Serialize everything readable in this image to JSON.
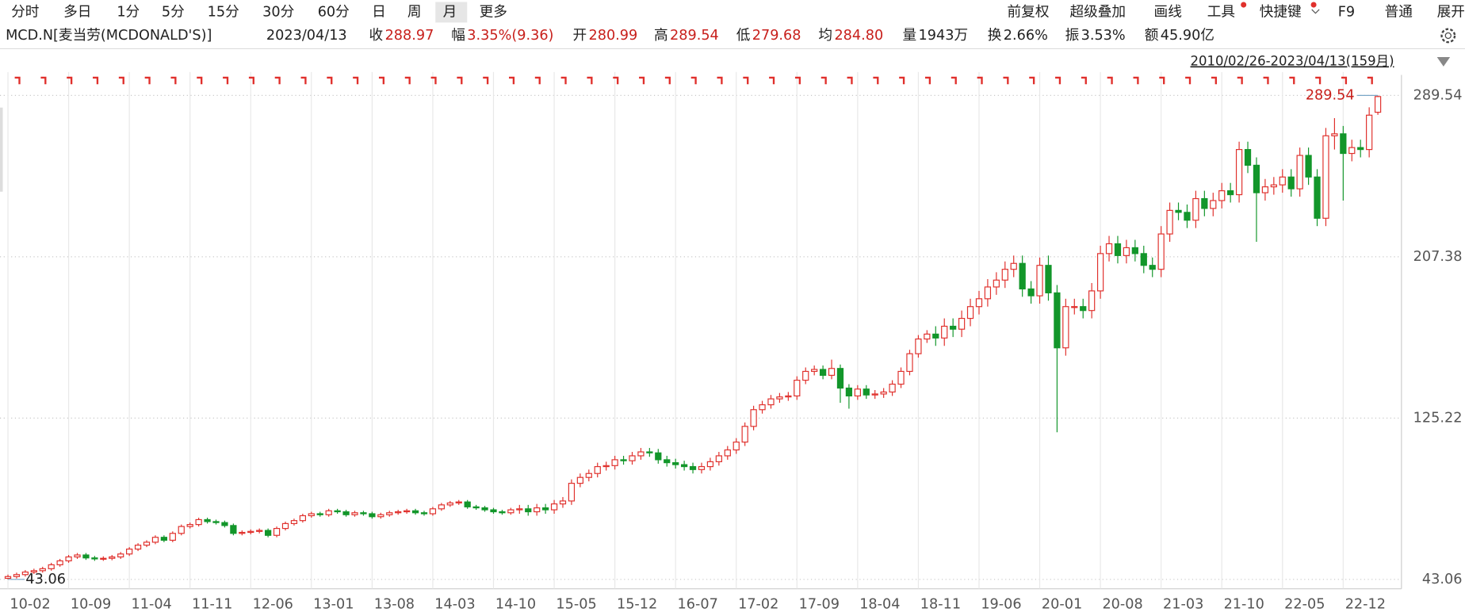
{
  "toolbar": {
    "left": [
      "分时",
      "多日",
      "1分",
      "5分",
      "15分",
      "30分",
      "60分",
      "日",
      "周",
      "月",
      "更多"
    ],
    "right": [
      "前复权",
      "超级叠加",
      "画线",
      "工具",
      "快捷键",
      "F9",
      "普通",
      "展开"
    ]
  },
  "header": {
    "symbol": "MCD.N[麦当劳(MCDONALD'S)]",
    "date": "2023/04/13",
    "stats": [
      {
        "label": "收",
        "value": "288.97"
      },
      {
        "label": "幅",
        "value": "3.35%(9.36)"
      },
      {
        "label": "开",
        "value": "280.99"
      },
      {
        "label": "高",
        "value": "289.54"
      },
      {
        "label": "低",
        "value": "279.68"
      },
      {
        "label": "均",
        "value": "284.80"
      },
      {
        "label": "量",
        "value": "1943万"
      },
      {
        "label": "换",
        "value": "2.66%"
      },
      {
        "label": "振",
        "value": "3.53%"
      },
      {
        "label": "额",
        "value": "45.90亿"
      }
    ],
    "range": "2010/02/26-2023/04/13(159月)"
  },
  "chart_data": {
    "type": "candlestick",
    "up_color": "#e0302c",
    "down_color": "#12962a",
    "grid": true,
    "ylim": [
      38.28,
      291.93
    ],
    "yticks": [
      43.06,
      125.22,
      207.38,
      289.54
    ],
    "categories": [
      "10-02",
      null,
      null,
      null,
      null,
      null,
      null,
      "10-09",
      null,
      null,
      null,
      null,
      null,
      null,
      "11-04",
      null,
      null,
      null,
      null,
      null,
      null,
      "11-11",
      null,
      null,
      null,
      null,
      null,
      null,
      "12-06",
      null,
      null,
      null,
      null,
      null,
      null,
      "13-01",
      null,
      null,
      null,
      null,
      null,
      null,
      "13-08",
      null,
      null,
      null,
      null,
      null,
      null,
      "14-03",
      null,
      null,
      null,
      null,
      null,
      null,
      "14-10",
      null,
      null,
      null,
      null,
      null,
      null,
      "15-05",
      null,
      null,
      null,
      null,
      null,
      null,
      "15-12",
      null,
      null,
      null,
      null,
      null,
      null,
      "16-07",
      null,
      null,
      null,
      null,
      null,
      null,
      "17-02",
      null,
      null,
      null,
      null,
      null,
      null,
      "17-09",
      null,
      null,
      null,
      null,
      null,
      null,
      "18-04",
      null,
      null,
      null,
      null,
      null,
      null,
      "18-11",
      null,
      null,
      null,
      null,
      null,
      null,
      "19-06",
      null,
      null,
      null,
      null,
      null,
      null,
      "20-01",
      null,
      null,
      null,
      null,
      null,
      null,
      "20-08",
      null,
      null,
      null,
      null,
      null,
      null,
      "21-03",
      null,
      null,
      null,
      null,
      null,
      null,
      "21-10",
      null,
      null,
      null,
      null,
      null,
      null,
      "22-05",
      null,
      null,
      null,
      null,
      null,
      null,
      "22-12",
      null,
      null,
      null,
      null
    ],
    "candles": [
      [
        43.6,
        45.5,
        43.06,
        44.5
      ],
      [
        44.5,
        46.5,
        43.5,
        45.5
      ],
      [
        45.5,
        47.8,
        44.5,
        46.8
      ],
      [
        46.8,
        48.5,
        45.8,
        47.5
      ],
      [
        47.5,
        49.5,
        46.5,
        48.5
      ],
      [
        48.5,
        51.5,
        47.5,
        50.5
      ],
      [
        50.5,
        53.5,
        49.5,
        52.5
      ],
      [
        52.5,
        55.5,
        51.5,
        54.5
      ],
      [
        54.5,
        56.5,
        53.5,
        55.5
      ],
      [
        55.5,
        56.5,
        53.0,
        54.0
      ],
      [
        54.0,
        55.0,
        52.5,
        53.5
      ],
      [
        53.5,
        54.8,
        52.5,
        53.8
      ],
      [
        53.8,
        55.5,
        52.8,
        54.5
      ],
      [
        54.5,
        57.0,
        53.5,
        56.0
      ],
      [
        56.0,
        59.5,
        55.0,
        58.5
      ],
      [
        58.5,
        61.5,
        57.5,
        60.5
      ],
      [
        60.5,
        63.0,
        59.5,
        62.0
      ],
      [
        62.0,
        65.5,
        61.0,
        64.5
      ],
      [
        64.5,
        65.5,
        62.0,
        63.0
      ],
      [
        63.0,
        67.5,
        62.0,
        66.5
      ],
      [
        66.5,
        71.0,
        65.5,
        70.0
      ],
      [
        70.0,
        72.0,
        69.0,
        71.0
      ],
      [
        71.0,
        74.5,
        70.0,
        73.5
      ],
      [
        73.5,
        74.5,
        71.5,
        72.5
      ],
      [
        72.5,
        73.5,
        71.0,
        72.0
      ],
      [
        72.0,
        73.0,
        69.5,
        70.5
      ],
      [
        70.5,
        71.5,
        65.5,
        66.5
      ],
      [
        66.5,
        68.0,
        65.5,
        67.0
      ],
      [
        67.0,
        68.5,
        66.0,
        67.5
      ],
      [
        67.5,
        69.0,
        66.5,
        68.0
      ],
      [
        68.0,
        69.0,
        64.5,
        65.5
      ],
      [
        65.5,
        70.0,
        64.5,
        69.0
      ],
      [
        69.0,
        72.5,
        68.0,
        71.5
      ],
      [
        71.5,
        74.0,
        70.5,
        73.0
      ],
      [
        73.0,
        76.5,
        72.0,
        75.5
      ],
      [
        75.5,
        77.5,
        74.5,
        76.5
      ],
      [
        76.5,
        77.5,
        75.0,
        76.0
      ],
      [
        76.0,
        79.0,
        75.0,
        78.0
      ],
      [
        78.0,
        79.0,
        76.5,
        77.5
      ],
      [
        77.5,
        78.5,
        75.0,
        76.0
      ],
      [
        76.0,
        78.0,
        75.0,
        77.0
      ],
      [
        77.0,
        78.0,
        75.5,
        76.5
      ],
      [
        76.5,
        77.5,
        74.0,
        75.0
      ],
      [
        75.0,
        77.0,
        74.0,
        76.0
      ],
      [
        76.0,
        78.0,
        75.0,
        77.0
      ],
      [
        77.0,
        78.5,
        76.0,
        77.5
      ],
      [
        77.5,
        79.0,
        76.5,
        78.0
      ],
      [
        78.0,
        79.0,
        76.0,
        77.0
      ],
      [
        77.0,
        78.0,
        75.5,
        76.5
      ],
      [
        76.5,
        80.0,
        75.5,
        79.0
      ],
      [
        79.0,
        82.0,
        78.0,
        81.0
      ],
      [
        81.0,
        83.0,
        80.0,
        82.0
      ],
      [
        82.0,
        83.5,
        81.0,
        82.5
      ],
      [
        82.5,
        83.5,
        79.0,
        80.0
      ],
      [
        80.0,
        81.0,
        78.5,
        79.5
      ],
      [
        79.5,
        80.5,
        77.5,
        78.5
      ],
      [
        78.5,
        79.5,
        76.5,
        77.5
      ],
      [
        77.5,
        78.5,
        76.0,
        77.0
      ],
      [
        77.0,
        79.5,
        76.0,
        78.5
      ],
      [
        78.5,
        81.0,
        76.5,
        79.0
      ],
      [
        79.0,
        81.0,
        75.5,
        77.5
      ],
      [
        77.5,
        81.5,
        75.5,
        79.5
      ],
      [
        79.5,
        81.5,
        76.5,
        78.5
      ],
      [
        78.5,
        83.5,
        76.5,
        81.5
      ],
      [
        81.5,
        85.0,
        79.5,
        83.0
      ],
      [
        83.0,
        94.0,
        81.0,
        92.0
      ],
      [
        92.0,
        97.0,
        90.0,
        95.0
      ],
      [
        95.0,
        99.0,
        93.0,
        97.0
      ],
      [
        97.0,
        102.5,
        95.0,
        100.5
      ],
      [
        100.5,
        103.0,
        98.5,
        101.0
      ],
      [
        101.0,
        106.0,
        99.0,
        104.0
      ],
      [
        104.0,
        106.0,
        101.5,
        103.5
      ],
      [
        103.5,
        108.0,
        101.5,
        106.0
      ],
      [
        106.0,
        110.0,
        104.0,
        108.0
      ],
      [
        108.0,
        110.0,
        105.5,
        107.5
      ],
      [
        107.5,
        109.5,
        102.0,
        104.0
      ],
      [
        104.0,
        106.0,
        100.5,
        102.5
      ],
      [
        102.5,
        104.5,
        99.5,
        101.5
      ],
      [
        101.5,
        103.5,
        98.5,
        100.5
      ],
      [
        100.5,
        102.5,
        97.0,
        99.0
      ],
      [
        99.0,
        102.5,
        97.0,
        100.5
      ],
      [
        100.5,
        105.0,
        98.5,
        103.0
      ],
      [
        103.0,
        108.0,
        101.0,
        106.0
      ],
      [
        106.0,
        111.0,
        104.0,
        109.0
      ],
      [
        109.0,
        115.0,
        107.0,
        113.0
      ],
      [
        113.0,
        123.0,
        111.0,
        121.0
      ],
      [
        121.0,
        131.5,
        119.0,
        129.5
      ],
      [
        129.5,
        134.0,
        127.5,
        132.0
      ],
      [
        132.0,
        137.0,
        130.0,
        135.0
      ],
      [
        135.0,
        138.0,
        133.0,
        136.0
      ],
      [
        136.0,
        138.5,
        134.0,
        136.5
      ],
      [
        136.5,
        146.5,
        134.5,
        144.5
      ],
      [
        144.5,
        151.0,
        142.5,
        149.0
      ],
      [
        149.0,
        152.0,
        147.0,
        150.0
      ],
      [
        150.0,
        152.0,
        145.0,
        147.0
      ],
      [
        147.0,
        155.0,
        145.0,
        150.5
      ],
      [
        150.5,
        152.5,
        133.0,
        140.5
      ],
      [
        140.5,
        142.5,
        130.0,
        136.5
      ],
      [
        136.5,
        142.0,
        134.5,
        140.0
      ],
      [
        140.0,
        142.0,
        135.0,
        137.0
      ],
      [
        137.0,
        139.5,
        135.0,
        137.5
      ],
      [
        137.5,
        140.5,
        135.5,
        138.5
      ],
      [
        138.5,
        144.5,
        136.5,
        142.5
      ],
      [
        142.5,
        151.0,
        140.5,
        149.0
      ],
      [
        149.0,
        160.0,
        147.0,
        158.0
      ],
      [
        158.0,
        167.5,
        156.0,
        165.5
      ],
      [
        165.5,
        170.0,
        163.5,
        168.0
      ],
      [
        168.0,
        172.0,
        162.0,
        166.0
      ],
      [
        166.0,
        176.0,
        162.0,
        172.0
      ],
      [
        172.0,
        176.0,
        166.5,
        170.5
      ],
      [
        170.5,
        180.0,
        166.5,
        176.0
      ],
      [
        176.0,
        186.0,
        172.0,
        182.0
      ],
      [
        182.0,
        190.0,
        178.0,
        186.0
      ],
      [
        186.0,
        196.0,
        182.0,
        192.0
      ],
      [
        192.0,
        199.5,
        188.0,
        195.5
      ],
      [
        195.5,
        205.0,
        191.5,
        201.0
      ],
      [
        201.0,
        208.0,
        197.0,
        204.0
      ],
      [
        204.0,
        208.0,
        187.0,
        191.0
      ],
      [
        191.0,
        195.0,
        183.5,
        187.5
      ],
      [
        187.5,
        207,
        183.5,
        203
      ],
      [
        203,
        208,
        185,
        189
      ],
      [
        189,
        193,
        118,
        161
      ],
      [
        161,
        186,
        157,
        182
      ],
      [
        182,
        186,
        178,
        182
      ],
      [
        182,
        186,
        176,
        180
      ],
      [
        180,
        194,
        176,
        190
      ],
      [
        190,
        213,
        186,
        209
      ],
      [
        209,
        218,
        205,
        214
      ],
      [
        214,
        218,
        204,
        208
      ],
      [
        208,
        216,
        204,
        212
      ],
      [
        212,
        216,
        205,
        209
      ],
      [
        209,
        213,
        199,
        203
      ],
      [
        203,
        207,
        197,
        201
      ],
      [
        201,
        223,
        197,
        219
      ],
      [
        219,
        235,
        215,
        231
      ],
      [
        231,
        235,
        226,
        230
      ],
      [
        230,
        234,
        222,
        226
      ],
      [
        226,
        241,
        222,
        237
      ],
      [
        237,
        241,
        228,
        232
      ],
      [
        232,
        240,
        228,
        236
      ],
      [
        236,
        245,
        232,
        241
      ],
      [
        241,
        245,
        235,
        239
      ],
      [
        239,
        266,
        235,
        262
      ],
      [
        262,
        266,
        250,
        254
      ],
      [
        254,
        258,
        215,
        240
      ],
      [
        240,
        247,
        236,
        243
      ],
      [
        243,
        248,
        239,
        244
      ],
      [
        244,
        252,
        240,
        248
      ],
      [
        248,
        252,
        238,
        242
      ],
      [
        242,
        263,
        238,
        259
      ],
      [
        259,
        263,
        244,
        248
      ],
      [
        248,
        252,
        223,
        227
      ],
      [
        227,
        273,
        223,
        269
      ],
      [
        269,
        278,
        262,
        270
      ],
      [
        270,
        274,
        236,
        260
      ],
      [
        260,
        267,
        256,
        263
      ],
      [
        263,
        267,
        258,
        262
      ],
      [
        262,
        283.5,
        258,
        279.5
      ],
      [
        280.99,
        289.54,
        279.68,
        288.97
      ]
    ]
  }
}
